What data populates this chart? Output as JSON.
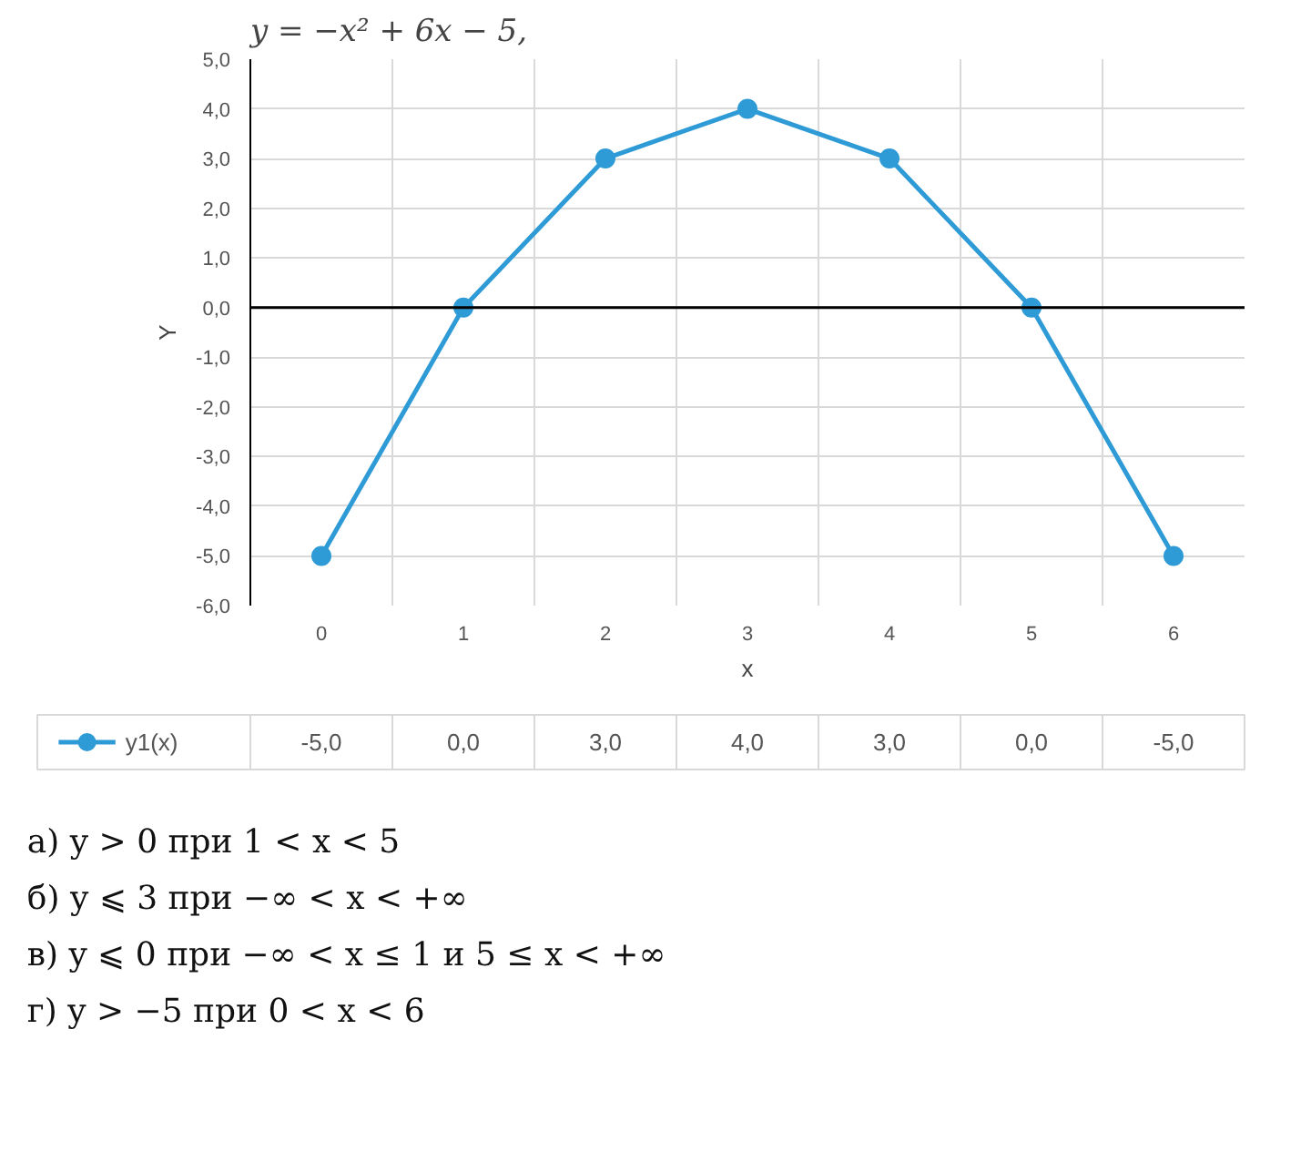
{
  "chart_data": {
    "type": "line",
    "title": "y = −x² + 6x − 5,",
    "xlabel": "x",
    "ylabel": "Y",
    "categories": [
      "0",
      "1",
      "2",
      "3",
      "4",
      "5",
      "6"
    ],
    "series": [
      {
        "name": "y1(x)",
        "color": "#2e9bd6",
        "values": [
          -5,
          0,
          3,
          4,
          3,
          0,
          -5
        ],
        "value_labels": [
          "-5,0",
          "0,0",
          "3,0",
          "4,0",
          "3,0",
          "0,0",
          "-5,0"
        ]
      }
    ],
    "ylim": [
      -6,
      5
    ],
    "yticks": [
      {
        "value": -6,
        "label": "-6,0"
      },
      {
        "value": -5,
        "label": "-5,0"
      },
      {
        "value": -4,
        "label": "-4,0"
      },
      {
        "value": -3,
        "label": "-3,0"
      },
      {
        "value": -2,
        "label": "-2,0"
      },
      {
        "value": -1,
        "label": "-1,0"
      },
      {
        "value": 0,
        "label": "0,0"
      },
      {
        "value": 1,
        "label": "1,0"
      },
      {
        "value": 2,
        "label": "2,0"
      },
      {
        "value": 3,
        "label": "3,0"
      },
      {
        "value": 4,
        "label": "4,0"
      },
      {
        "value": 5,
        "label": "5,0"
      }
    ],
    "ref_lines": [
      {
        "axis": "y",
        "value": 0,
        "color": "#000000"
      }
    ],
    "grid": true,
    "marker": "circle",
    "legend": "bottom left",
    "annotations": [
      "а) y > 0 при 1 < x < 5",
      "б) y ⩽ 3 при −∞ < x < +∞",
      "в) y ⩽ 0 при −∞ < x ≤ 1 и 5 ≤ x < +∞",
      "г) y > −5 при 0 < x < 6"
    ]
  }
}
